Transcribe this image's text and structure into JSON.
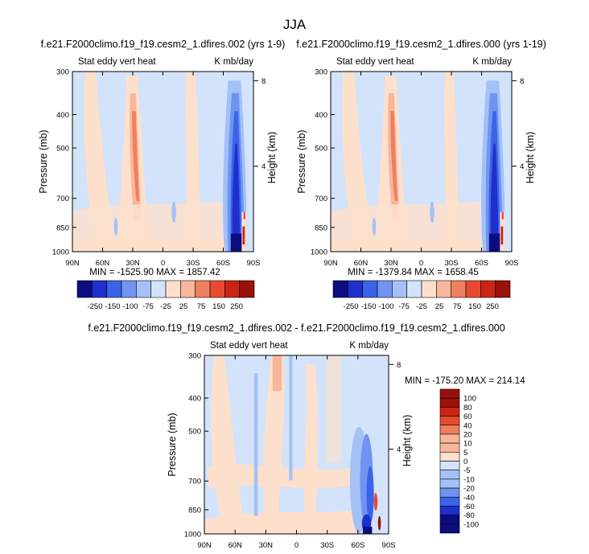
{
  "page_title": "JJA",
  "colors": {
    "neg": [
      "#0d0d80",
      "#1f2fcc",
      "#3a63e8",
      "#6f94f2",
      "#a3c1f7",
      "#d2e3fb"
    ],
    "pos": [
      "#fde0cc",
      "#f8b79a",
      "#f07f5f",
      "#e84a2f",
      "#cc2412",
      "#991108"
    ],
    "background_field": "#d2e3fb",
    "frame": "#000000"
  },
  "chart_data": [
    {
      "type": "heatmap",
      "title": "f.e21.F2000climo.f19_f19.cesm2_1.dfires.002 (yrs 1-9)",
      "left_label": "Stat eddy vert heat",
      "right_label": "K mb/day",
      "ylabel": "Pressure (mb)",
      "y2label": "Height (km)",
      "x_ticks": [
        "90N",
        "60N",
        "30N",
        "0",
        "30S",
        "60S",
        "90S"
      ],
      "x_values": [
        90,
        60,
        30,
        0,
        -30,
        -60,
        -90
      ],
      "xlim": [
        90,
        -90
      ],
      "y_ticks": [
        300,
        400,
        500,
        700,
        850,
        1000
      ],
      "ylim": [
        300,
        1000
      ],
      "y2_ticks": [
        8,
        4
      ],
      "stats": "MIN = -1525.90  MAX = 1857.42",
      "colorbar": {
        "orientation": "horizontal",
        "labels": [
          "-250",
          "-150",
          "-100",
          "-75",
          "-25",
          "25",
          "75",
          "150",
          "250"
        ]
      }
    },
    {
      "type": "heatmap",
      "title": "f.e21.F2000climo.f19_f19.cesm2_1.dfires.000 (yrs 1-19)",
      "left_label": "Stat eddy vert heat",
      "right_label": "K mb/day",
      "ylabel": "Pressure (mb)",
      "y2label": "Height (km)",
      "x_ticks": [
        "90N",
        "60N",
        "30N",
        "0",
        "30S",
        "60S",
        "90S"
      ],
      "x_values": [
        90,
        60,
        30,
        0,
        -30,
        -60,
        -90
      ],
      "xlim": [
        90,
        -90
      ],
      "y_ticks": [
        300,
        400,
        500,
        700,
        850,
        1000
      ],
      "ylim": [
        300,
        1000
      ],
      "y2_ticks": [
        8,
        4
      ],
      "stats": "MIN = -1379.84  MAX = 1658.45",
      "colorbar": {
        "orientation": "horizontal",
        "labels": [
          "-250",
          "-150",
          "-100",
          "-75",
          "-25",
          "25",
          "75",
          "150",
          "250"
        ]
      }
    },
    {
      "type": "heatmap",
      "title": "f.e21.F2000climo.f19_f19.cesm2_1.dfires.002 - f.e21.F2000climo.f19_f19.cesm2_1.dfires.000",
      "left_label": "Stat eddy vert heat",
      "right_label": "K mb/day",
      "ylabel": "Pressure (mb)",
      "y2label": "Height (km)",
      "x_ticks": [
        "90N",
        "60N",
        "30N",
        "0",
        "30S",
        "60S",
        "90S"
      ],
      "x_values": [
        90,
        60,
        30,
        0,
        -30,
        -60,
        -90
      ],
      "xlim": [
        90,
        -90
      ],
      "y_ticks": [
        300,
        400,
        500,
        700,
        850,
        1000
      ],
      "ylim": [
        300,
        1000
      ],
      "y2_ticks": [
        8,
        4
      ],
      "stats": "MIN = -175.20  MAX = 214.14",
      "colorbar": {
        "orientation": "vertical",
        "labels": [
          "100",
          "80",
          "60",
          "40",
          "20",
          "10",
          "5",
          "0",
          "-5",
          "-10",
          "-20",
          "-40",
          "-60",
          "-80",
          "-100"
        ]
      }
    }
  ]
}
